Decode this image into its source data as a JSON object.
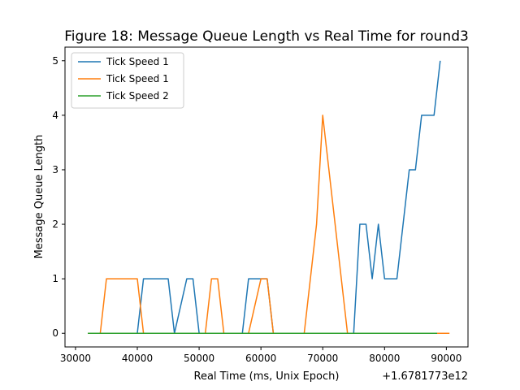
{
  "chart_data": {
    "type": "line",
    "title": "Figure 18: Message Queue Length vs Real Time for round3",
    "xlabel": "Real Time (ms, Unix Epoch)",
    "ylabel": "Message Queue Length",
    "x_offset_label": "+1.6781773e12",
    "xlim": [
      28300,
      93500
    ],
    "ylim": [
      -0.25,
      5.25
    ],
    "x_ticks": [
      30000,
      40000,
      50000,
      60000,
      70000,
      80000,
      90000
    ],
    "x_tick_labels": [
      "30000",
      "40000",
      "50000",
      "60000",
      "70000",
      "80000",
      "90000"
    ],
    "y_ticks": [
      0,
      1,
      2,
      3,
      4,
      5
    ],
    "y_tick_labels": [
      "0",
      "1",
      "2",
      "3",
      "4",
      "5"
    ],
    "grid": false,
    "legend_position": "upper-left",
    "series": [
      {
        "name": "Tick Speed 1",
        "color": "#1f77b4",
        "x": [
          32000,
          40000,
          41000,
          45000,
          46000,
          48000,
          49000,
          50000,
          57000,
          58000,
          61000,
          62000,
          75000,
          76000,
          77000,
          78000,
          79000,
          80000,
          82000,
          84000,
          85000,
          86000,
          88000,
          89000
        ],
        "y": [
          0,
          0,
          1,
          1,
          0,
          1,
          1,
          0,
          0,
          1,
          1,
          0,
          0,
          2,
          2,
          1,
          2,
          1,
          1,
          3,
          3,
          4,
          4,
          5
        ]
      },
      {
        "name": "Tick Speed 1",
        "color": "#ff7f0e",
        "x": [
          32000,
          34000,
          35000,
          40000,
          41000,
          51000,
          52000,
          53000,
          54000,
          58000,
          60000,
          61000,
          62000,
          67000,
          69000,
          70000,
          74000,
          75000,
          90500
        ],
        "y": [
          0,
          0,
          1,
          1,
          0,
          0,
          1,
          1,
          0,
          0,
          1,
          1,
          0,
          0,
          2,
          4,
          0,
          0,
          0
        ]
      },
      {
        "name": "Tick Speed 2",
        "color": "#2ca02c",
        "x": [
          32000,
          88500
        ],
        "y": [
          0,
          0
        ]
      }
    ]
  }
}
